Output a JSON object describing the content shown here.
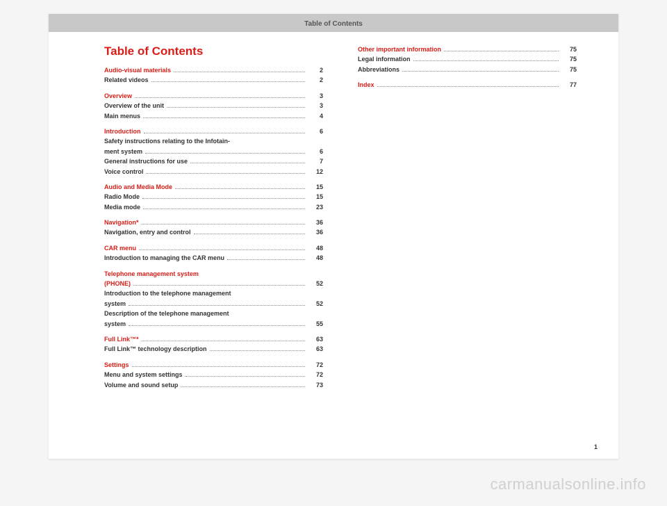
{
  "header": "Table of Contents",
  "title": "Table of Contents",
  "pageNumber": "1",
  "watermark": "carmanualsonline.info",
  "colors": {
    "accent": "#d91e18",
    "headerBg": "#c8c8c8",
    "text": "#333333"
  },
  "columns": [
    [
      {
        "type": "section",
        "label": "Audio-visual materials",
        "page": "2"
      },
      {
        "type": "sub",
        "label": "Related videos",
        "page": "2"
      },
      {
        "type": "gap"
      },
      {
        "type": "section",
        "label": "Overview",
        "page": "3"
      },
      {
        "type": "sub",
        "label": "Overview of the unit",
        "page": "3"
      },
      {
        "type": "sub",
        "label": "Main menus",
        "page": "4"
      },
      {
        "type": "gap"
      },
      {
        "type": "section",
        "label": "Introduction",
        "page": "6"
      },
      {
        "type": "sub",
        "label": "Safety instructions relating to the Infotain-",
        "page": ""
      },
      {
        "type": "sub",
        "label": "ment system",
        "page": "6"
      },
      {
        "type": "sub",
        "label": "General instructions for use",
        "page": "7"
      },
      {
        "type": "sub",
        "label": "Voice control",
        "page": "12"
      },
      {
        "type": "gap"
      },
      {
        "type": "section",
        "label": "Audio and Media Mode",
        "page": "15"
      },
      {
        "type": "sub",
        "label": "Radio Mode",
        "page": "15"
      },
      {
        "type": "sub",
        "label": "Media mode",
        "page": "23"
      },
      {
        "type": "gap"
      },
      {
        "type": "section",
        "label": "Navigation*",
        "page": "36"
      },
      {
        "type": "sub",
        "label": "Navigation, entry and control",
        "page": "36"
      },
      {
        "type": "gap"
      },
      {
        "type": "section",
        "label": "CAR menu",
        "page": "48"
      },
      {
        "type": "sub",
        "label": "Introduction to managing the CAR menu",
        "page": "48"
      },
      {
        "type": "gap"
      },
      {
        "type": "section",
        "label": "Telephone management system",
        "page": ""
      },
      {
        "type": "section",
        "label": "(PHONE)",
        "page": "52"
      },
      {
        "type": "sub",
        "label": "Introduction to the telephone management",
        "page": ""
      },
      {
        "type": "sub",
        "label": "system",
        "page": "52"
      },
      {
        "type": "sub",
        "label": "Description of the telephone management",
        "page": ""
      },
      {
        "type": "sub",
        "label": "system",
        "page": "55"
      },
      {
        "type": "gap"
      },
      {
        "type": "section",
        "label": "Full Link™*",
        "page": "63"
      },
      {
        "type": "sub",
        "label": "Full Link™ technology description",
        "page": "63"
      },
      {
        "type": "gap"
      },
      {
        "type": "section",
        "label": "Settings",
        "page": "72"
      },
      {
        "type": "sub",
        "label": "Menu and system settings",
        "page": "72"
      },
      {
        "type": "sub",
        "label": "Volume and sound setup",
        "page": "73"
      }
    ],
    [
      {
        "type": "section",
        "label": "Other important information",
        "page": "75"
      },
      {
        "type": "sub",
        "label": "Legal information",
        "page": "75"
      },
      {
        "type": "sub",
        "label": "Abbreviations",
        "page": "75"
      },
      {
        "type": "gap"
      },
      {
        "type": "section",
        "label": "Index",
        "page": "77"
      }
    ]
  ]
}
